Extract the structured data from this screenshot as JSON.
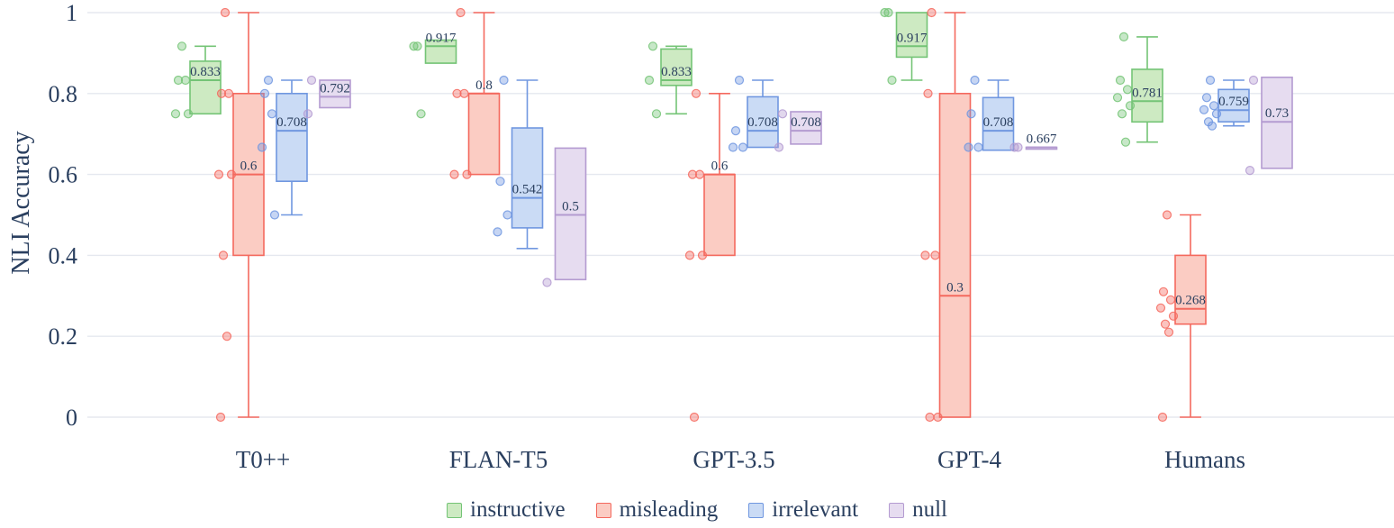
{
  "chart_data": {
    "type": "box",
    "title": "",
    "xlabel": "",
    "ylabel": "NLI Accuracy",
    "ylim": [
      0,
      1
    ],
    "yticks": [
      "0",
      "0.2",
      "0.4",
      "0.6",
      "0.8",
      "1"
    ],
    "ytick_values": [
      0,
      0.2,
      0.4,
      0.6,
      0.8,
      1
    ],
    "grid": true,
    "legend_position": "bottom-center",
    "text_color": "#2a3f5f",
    "grid_color": "#e5e8ef",
    "background": "#ffffff",
    "categories": [
      "T0++",
      "FLAN-T5",
      "GPT-3.5",
      "GPT-4",
      "Humans"
    ],
    "series": [
      {
        "name": "instructive",
        "fill": "#cdeac2",
        "stroke": "#74c476",
        "boxes": [
          {
            "median": 0.833,
            "q1": 0.75,
            "q3": 0.88,
            "whisker_low": 0.75,
            "whisker_high": 0.917,
            "label": "0.833",
            "points": [
              0.917,
              0.833,
              0.833,
              0.75,
              0.75
            ]
          },
          {
            "median": 0.917,
            "q1": 0.875,
            "q3": 0.932,
            "whisker_low": 0.875,
            "whisker_high": 0.932,
            "label": "0.917",
            "points": [
              0.917,
              0.917,
              0.75
            ]
          },
          {
            "median": 0.833,
            "q1": 0.82,
            "q3": 0.91,
            "whisker_low": 0.75,
            "whisker_high": 0.917,
            "label": "0.833",
            "points": [
              0.917,
              0.833,
              0.75
            ]
          },
          {
            "median": 0.917,
            "q1": 0.89,
            "q3": 1.0,
            "whisker_low": 0.833,
            "whisker_high": 1.0,
            "label": "0.917",
            "points": [
              1.0,
              1.0,
              0.833
            ]
          },
          {
            "median": 0.781,
            "q1": 0.73,
            "q3": 0.86,
            "whisker_low": 0.68,
            "whisker_high": 0.94,
            "label": "0.781",
            "points": [
              0.94,
              0.833,
              0.81,
              0.79,
              0.77,
              0.75,
              0.68
            ]
          }
        ]
      },
      {
        "name": "misleading",
        "fill": "#fbccc3",
        "stroke": "#f4695e",
        "boxes": [
          {
            "median": 0.6,
            "q1": 0.4,
            "q3": 0.8,
            "whisker_low": 0.0,
            "whisker_high": 1.0,
            "label": "0.6",
            "points": [
              1.0,
              0.8,
              0.8,
              0.6,
              0.6,
              0.4,
              0.2,
              0.0
            ]
          },
          {
            "median": 0.8,
            "q1": 0.6,
            "q3": 0.8,
            "whisker_low": 0.6,
            "whisker_high": 1.0,
            "label": "0.8",
            "points": [
              1.0,
              0.8,
              0.8,
              0.6,
              0.6
            ]
          },
          {
            "median": 0.6,
            "q1": 0.4,
            "q3": 0.6,
            "whisker_low": 0.4,
            "whisker_high": 0.8,
            "label": "0.6",
            "points": [
              0.8,
              0.6,
              0.6,
              0.4,
              0.4,
              0.0
            ]
          },
          {
            "median": 0.3,
            "q1": 0.0,
            "q3": 0.8,
            "whisker_low": 0.0,
            "whisker_high": 1.0,
            "label": "0.3",
            "points": [
              1.0,
              0.8,
              0.4,
              0.4,
              0.0,
              0.0
            ]
          },
          {
            "median": 0.268,
            "q1": 0.23,
            "q3": 0.4,
            "whisker_low": 0.0,
            "whisker_high": 0.5,
            "label": "0.268",
            "points": [
              0.5,
              0.31,
              0.29,
              0.27,
              0.25,
              0.23,
              0.21,
              0.0
            ]
          }
        ]
      },
      {
        "name": "irrelevant",
        "fill": "#cadbf5",
        "stroke": "#7097e0",
        "boxes": [
          {
            "median": 0.708,
            "q1": 0.583,
            "q3": 0.8,
            "whisker_low": 0.5,
            "whisker_high": 0.833,
            "label": "0.708",
            "points": [
              0.833,
              0.8,
              0.75,
              0.667,
              0.5
            ]
          },
          {
            "median": 0.542,
            "q1": 0.468,
            "q3": 0.715,
            "whisker_low": 0.417,
            "whisker_high": 0.833,
            "label": "0.542",
            "points": [
              0.833,
              0.583,
              0.5,
              0.458
            ]
          },
          {
            "median": 0.708,
            "q1": 0.667,
            "q3": 0.792,
            "whisker_low": 0.667,
            "whisker_high": 0.833,
            "label": "0.708",
            "points": [
              0.833,
              0.708,
              0.667,
              0.667
            ]
          },
          {
            "median": 0.708,
            "q1": 0.66,
            "q3": 0.79,
            "whisker_low": 0.66,
            "whisker_high": 0.833,
            "label": "0.708",
            "points": [
              0.833,
              0.75,
              0.667,
              0.667
            ]
          },
          {
            "median": 0.759,
            "q1": 0.73,
            "q3": 0.81,
            "whisker_low": 0.72,
            "whisker_high": 0.833,
            "label": "0.759",
            "points": [
              0.833,
              0.79,
              0.77,
              0.76,
              0.75,
              0.73,
              0.72
            ]
          }
        ]
      },
      {
        "name": "null",
        "fill": "#e6dcf0",
        "stroke": "#b49bd1",
        "boxes": [
          {
            "median": 0.792,
            "q1": 0.765,
            "q3": 0.833,
            "whisker_low": 0.765,
            "whisker_high": 0.833,
            "label": "0.792",
            "points": [
              0.833,
              0.75
            ]
          },
          {
            "median": 0.5,
            "q1": 0.34,
            "q3": 0.665,
            "whisker_low": 0.34,
            "whisker_high": 0.665,
            "label": "0.5",
            "points": [
              0.333
            ]
          },
          {
            "median": 0.708,
            "q1": 0.675,
            "q3": 0.755,
            "whisker_low": 0.675,
            "whisker_high": 0.755,
            "label": "0.708",
            "points": [
              0.75,
              0.667
            ]
          },
          {
            "median": 0.667,
            "q1": 0.667,
            "q3": 0.667,
            "whisker_low": 0.667,
            "whisker_high": 0.667,
            "label": "0.667",
            "points": [
              0.667,
              0.667
            ]
          },
          {
            "median": 0.73,
            "q1": 0.615,
            "q3": 0.84,
            "whisker_low": 0.615,
            "whisker_high": 0.84,
            "label": "0.73",
            "points": [
              0.833,
              0.61
            ]
          }
        ]
      }
    ]
  }
}
